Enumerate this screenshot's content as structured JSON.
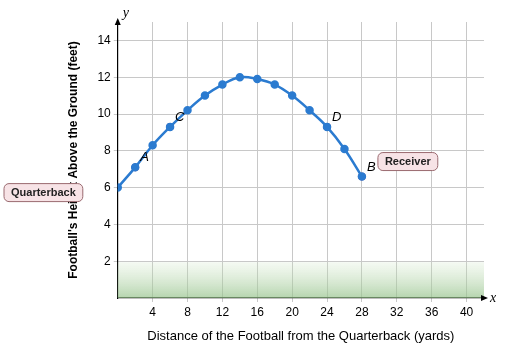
{
  "chart_data": {
    "type": "line",
    "y_label": "Football's Height Above the Ground (feet)",
    "x_label": "Distance of the Football from the Quarterback (yards)",
    "axis_symbols": {
      "x": "x",
      "y": "y"
    },
    "x": [
      0,
      2,
      4,
      6,
      8,
      10,
      12,
      14,
      16,
      18,
      20,
      22,
      24,
      26,
      28
    ],
    "series": [
      {
        "color": "#2b7bd0",
        "marker": "circle",
        "line_style": "solid",
        "values": [
          6,
          7.1,
          8.3,
          9.3,
          10.2,
          11,
          11.6,
          12,
          11.9,
          11.6,
          11,
          10.2,
          9.3,
          8.1,
          6.6
        ]
      }
    ],
    "points": [
      {
        "label": "A",
        "x": 2,
        "y": 7.1
      },
      {
        "label": "C",
        "x": 6,
        "y": 9.3
      },
      {
        "label": "D",
        "x": 24,
        "y": 9.3
      },
      {
        "label": "B",
        "x": 28,
        "y": 6.6
      }
    ],
    "points_color": "#b8325e",
    "callouts": [
      "Quarterback",
      "Receiver"
    ],
    "xlim": [
      0,
      42
    ],
    "xticks": [
      4,
      8,
      12,
      16,
      20,
      24,
      28,
      32,
      36,
      40
    ],
    "ylim": [
      0,
      15
    ],
    "yticks": [
      2,
      4,
      6,
      8,
      10,
      12,
      14
    ],
    "grid": true
  }
}
